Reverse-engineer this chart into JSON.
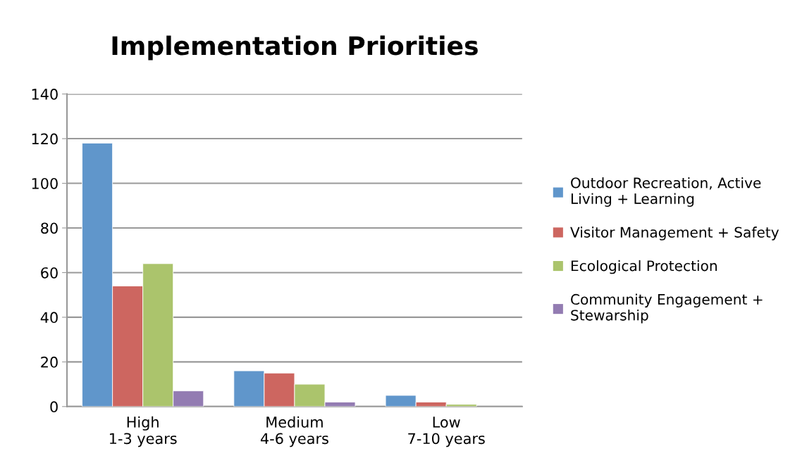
{
  "chart_data": {
    "type": "bar",
    "title": "Implementation Priorities",
    "categories": [
      "High\n1-3 years",
      "Medium\n4-6 years",
      "Low\n7-10 years"
    ],
    "series": [
      {
        "name": "Outdoor Recreation, Active\nLiving + Learning",
        "color": "#6096cb",
        "values": [
          118,
          16,
          5
        ]
      },
      {
        "name": "Visitor Management + Safety",
        "color": "#cd6660",
        "values": [
          54,
          15,
          2
        ]
      },
      {
        "name": "Ecological Protection",
        "color": "#abc46c",
        "values": [
          64,
          10,
          1
        ]
      },
      {
        "name": "Community Engagement +\nStewarship",
        "color": "#937cb2",
        "values": [
          7,
          2,
          null
        ]
      }
    ],
    "ylim": [
      0,
      140
    ],
    "yticks": [
      0,
      20,
      40,
      60,
      80,
      100,
      120,
      140
    ],
    "grid": "y",
    "legend": "right"
  }
}
